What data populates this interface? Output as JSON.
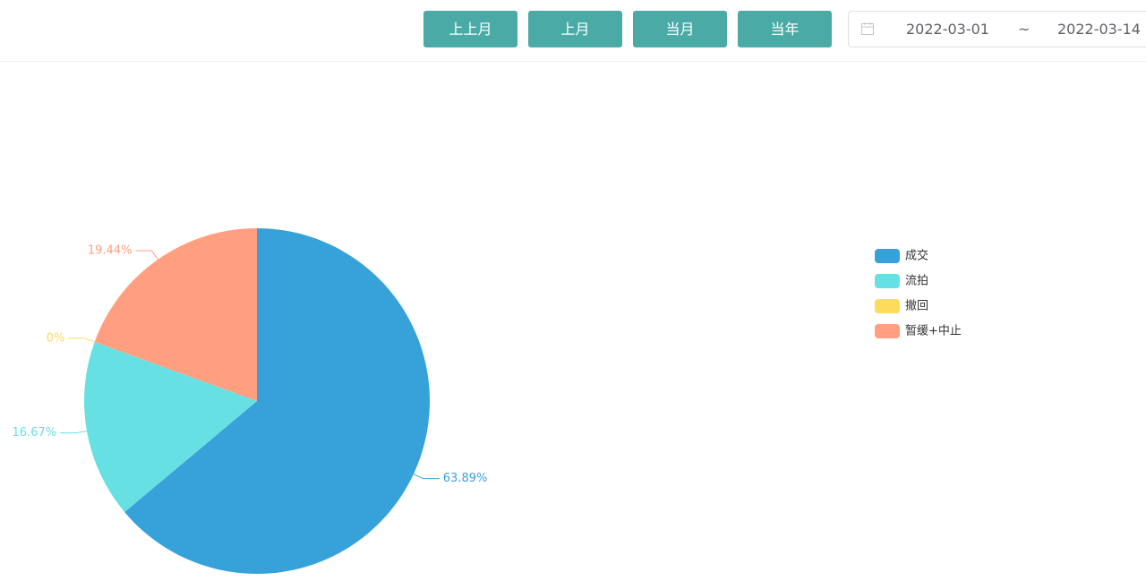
{
  "toolbar": {
    "buttons": [
      "上上月",
      "上月",
      "当月",
      "当年"
    ],
    "date_range": {
      "start": "2022-03-01",
      "separator": "~",
      "end": "2022-03-14"
    }
  },
  "chart_data": {
    "type": "pie",
    "categories": [
      "成交",
      "流拍",
      "撤回",
      "暂缓+中止"
    ],
    "values": [
      63.89,
      16.67,
      0,
      19.44
    ],
    "value_labels": [
      "63.89%",
      "16.67%",
      "0%",
      "19.44%"
    ],
    "colors": [
      "#37a2da",
      "#67e0e3",
      "#ffdb5c",
      "#ff9f7f"
    ],
    "legend": "right"
  }
}
